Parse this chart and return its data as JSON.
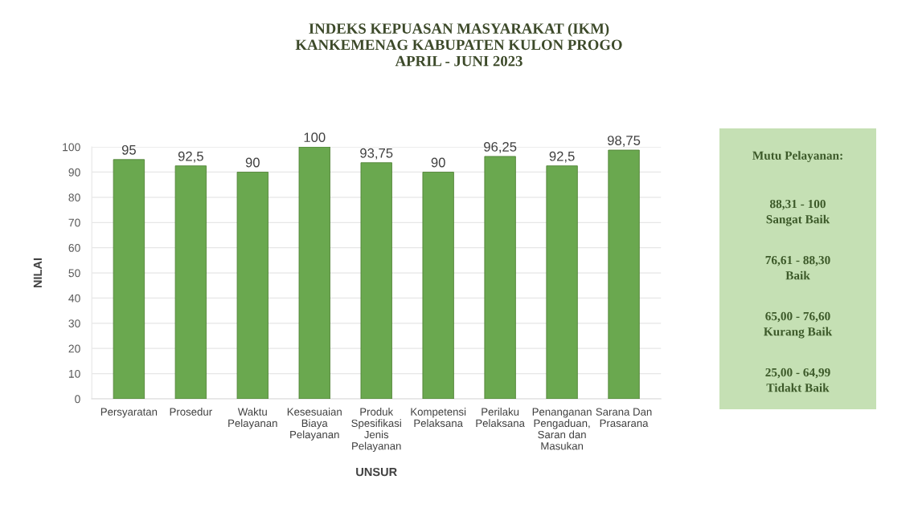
{
  "chart_data": {
    "type": "bar",
    "title": "INDEKS KEPUASAN MASYARAKAT (IKM)\nKANKEMENAG KABUPATEN KULON PROGO\nAPRIL - JUNI 2023",
    "categories": [
      "Persyaratan",
      "Prosedur",
      "Waktu\nPelayanan",
      "Kesesuaian\nBiaya\nPelayanan",
      "Produk\nSpesifikasi\nJenis\nPelayanan",
      "Kompetensi\nPelaksana",
      "Perilaku\nPelaksana",
      "Penanganan\nPengaduan,\nSaran dan\nMasukan",
      "Sarana Dan\nPrasarana"
    ],
    "values": [
      95,
      92.5,
      90,
      100,
      93.75,
      90,
      96.25,
      92.5,
      98.75
    ],
    "value_labels": [
      "95",
      "92,5",
      "90",
      "100",
      "93,75",
      "90",
      "96,25",
      "92,5",
      "98,75"
    ],
    "color": "#6aa84f",
    "xlabel": "UNSUR",
    "ylabel": "NILAI",
    "ylim": [
      0,
      100
    ],
    "yticks": [
      0,
      10,
      20,
      30,
      40,
      50,
      60,
      70,
      80,
      90,
      100
    ],
    "grid": "y",
    "annotations": [
      "Mutu Pelayanan:",
      "88,31 - 100\nSangat Baik",
      "76,61 - 88,30\nBaik",
      "65,00 - 76,60\nKurang Baik",
      "25,00 - 64,99\nTidakt Baik"
    ]
  }
}
